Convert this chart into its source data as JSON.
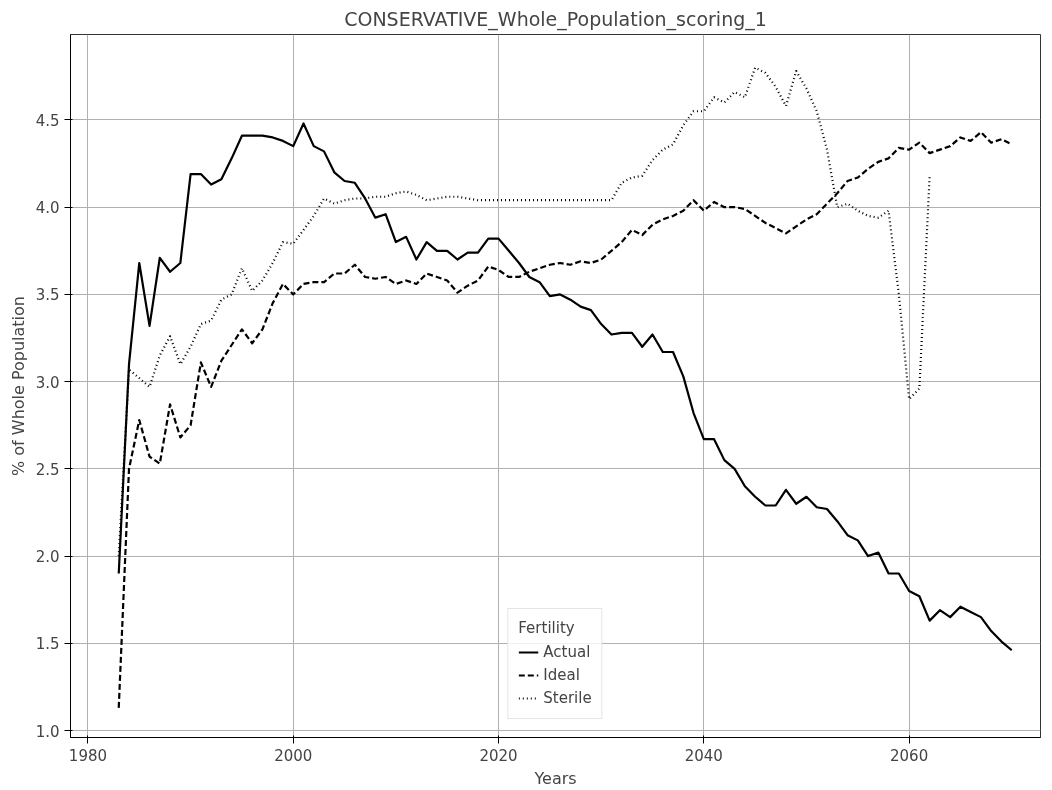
{
  "chart_data": {
    "type": "line",
    "title": "CONSERVATIVE_Whole_Population_scoring_1",
    "xlabel": "Years",
    "ylabel": "% of Whole Population",
    "legend_title": "Fertility",
    "legend": "bottom",
    "grid": true,
    "xlim": [
      1978.3,
      2072.8
    ],
    "ylim": [
      0.96,
      4.99
    ],
    "xticks": [
      1980,
      2000,
      2020,
      2040,
      2060
    ],
    "yticks": [
      {
        "value": 1.0,
        "label": "1.0"
      },
      {
        "value": 1.5,
        "label": "1.5"
      },
      {
        "value": 2.0,
        "label": "2.0"
      },
      {
        "value": 2.5,
        "label": "2.5"
      },
      {
        "value": 3.0,
        "label": "3.0"
      },
      {
        "value": 3.5,
        "label": "3.5"
      },
      {
        "value": 4.0,
        "label": "4.0"
      },
      {
        "value": 4.5,
        "label": "4.5"
      }
    ],
    "series": [
      {
        "name": "Actual",
        "color": "#000000",
        "line_style": "solid",
        "x": [
          1983,
          1984,
          1985,
          1986,
          1987,
          1988,
          1989,
          1990,
          1991,
          1992,
          1993,
          1994,
          1995,
          1996,
          1997,
          1998,
          1999,
          2000,
          2001,
          2002,
          2003,
          2004,
          2005,
          2006,
          2007,
          2008,
          2009,
          2010,
          2011,
          2012,
          2013,
          2014,
          2015,
          2016,
          2017,
          2018,
          2019,
          2020,
          2021,
          2022,
          2023,
          2024,
          2025,
          2026,
          2027,
          2028,
          2029,
          2030,
          2031,
          2032,
          2033,
          2034,
          2035,
          2036,
          2037,
          2038,
          2039,
          2040,
          2041,
          2042,
          2043,
          2044,
          2045,
          2046,
          2047,
          2048,
          2049,
          2050,
          2051,
          2052,
          2053,
          2054,
          2055,
          2056,
          2057,
          2058,
          2059,
          2060,
          2061,
          2062,
          2063,
          2064,
          2065,
          2066,
          2067,
          2068,
          2069,
          2070
        ],
        "values": [
          1.9,
          3.1,
          3.68,
          3.32,
          3.71,
          3.63,
          3.68,
          4.19,
          4.19,
          4.13,
          4.16,
          4.28,
          4.41,
          4.41,
          4.41,
          4.4,
          4.38,
          4.35,
          4.48,
          4.35,
          4.32,
          4.2,
          4.15,
          4.14,
          4.05,
          3.94,
          3.96,
          3.8,
          3.83,
          3.7,
          3.8,
          3.75,
          3.75,
          3.7,
          3.74,
          3.74,
          3.82,
          3.82,
          3.75,
          3.68,
          3.6,
          3.57,
          3.49,
          3.5,
          3.47,
          3.43,
          3.41,
          3.33,
          3.27,
          3.28,
          3.28,
          3.2,
          3.27,
          3.17,
          3.17,
          3.03,
          2.82,
          2.67,
          2.67,
          2.55,
          2.5,
          2.4,
          2.34,
          2.29,
          2.29,
          2.38,
          2.3,
          2.34,
          2.28,
          2.27,
          2.2,
          2.12,
          2.09,
          2.0,
          2.02,
          1.9,
          1.9,
          1.8,
          1.77,
          1.63,
          1.69,
          1.65,
          1.71,
          1.68,
          1.65,
          1.57,
          1.51,
          1.46
        ]
      },
      {
        "name": "Ideal",
        "color": "#000000",
        "line_style": "dashed",
        "x": [
          1983,
          1984,
          1985,
          1986,
          1987,
          1988,
          1989,
          1990,
          1991,
          1992,
          1993,
          1994,
          1995,
          1996,
          1997,
          1998,
          1999,
          2000,
          2001,
          2002,
          2003,
          2004,
          2005,
          2006,
          2007,
          2008,
          2009,
          2010,
          2011,
          2012,
          2013,
          2014,
          2015,
          2016,
          2017,
          2018,
          2019,
          2020,
          2021,
          2022,
          2023,
          2024,
          2025,
          2026,
          2027,
          2028,
          2029,
          2030,
          2031,
          2032,
          2033,
          2034,
          2035,
          2036,
          2037,
          2038,
          2039,
          2040,
          2041,
          2042,
          2043,
          2044,
          2045,
          2046,
          2047,
          2048,
          2049,
          2050,
          2051,
          2052,
          2053,
          2054,
          2055,
          2056,
          2057,
          2058,
          2059,
          2060,
          2061,
          2062,
          2063,
          2064,
          2065,
          2066,
          2067,
          2068,
          2069,
          2070
        ],
        "values": [
          1.13,
          2.5,
          2.78,
          2.57,
          2.53,
          2.87,
          2.68,
          2.75,
          3.11,
          2.97,
          3.12,
          3.21,
          3.3,
          3.22,
          3.3,
          3.45,
          3.56,
          3.5,
          3.56,
          3.57,
          3.57,
          3.62,
          3.62,
          3.67,
          3.6,
          3.59,
          3.6,
          3.56,
          3.58,
          3.56,
          3.62,
          3.6,
          3.58,
          3.51,
          3.55,
          3.58,
          3.66,
          3.64,
          3.6,
          3.6,
          3.63,
          3.65,
          3.67,
          3.68,
          3.67,
          3.69,
          3.68,
          3.7,
          3.75,
          3.8,
          3.87,
          3.84,
          3.9,
          3.93,
          3.95,
          3.98,
          4.04,
          3.98,
          4.03,
          4.0,
          4.0,
          3.99,
          3.95,
          3.91,
          3.88,
          3.85,
          3.89,
          3.93,
          3.96,
          4.02,
          4.08,
          4.15,
          4.17,
          4.22,
          4.26,
          4.28,
          4.34,
          4.33,
          4.37,
          4.31,
          4.33,
          4.35,
          4.4,
          4.38,
          4.43,
          4.37,
          4.39,
          4.36
        ]
      },
      {
        "name": "Sterile",
        "color": "#000000",
        "line_style": "dotted",
        "x": [
          1983,
          1984,
          1985,
          1986,
          1987,
          1988,
          1989,
          1990,
          1991,
          1992,
          1993,
          1994,
          1995,
          1996,
          1997,
          1998,
          1999,
          2000,
          2001,
          2002,
          2003,
          2004,
          2005,
          2006,
          2007,
          2008,
          2009,
          2010,
          2011,
          2012,
          2013,
          2014,
          2015,
          2016,
          2017,
          2018,
          2019,
          2020,
          2021,
          2022,
          2023,
          2024,
          2025,
          2026,
          2027,
          2028,
          2029,
          2030,
          2031,
          2032,
          2033,
          2034,
          2035,
          2036,
          2037,
          2038,
          2039,
          2040,
          2041,
          2042,
          2043,
          2044,
          2045,
          2046,
          2047,
          2048,
          2049,
          2050,
          2051,
          2052,
          2053,
          2054,
          2055,
          2056,
          2057,
          2058,
          2059,
          2060,
          2061,
          2062
        ],
        "values": [
          2.0,
          3.07,
          3.02,
          2.97,
          3.15,
          3.26,
          3.1,
          3.2,
          3.33,
          3.35,
          3.47,
          3.5,
          3.65,
          3.52,
          3.58,
          3.68,
          3.8,
          3.79,
          3.87,
          3.95,
          4.05,
          4.02,
          4.04,
          4.05,
          4.05,
          4.06,
          4.06,
          4.08,
          4.09,
          4.07,
          4.04,
          4.05,
          4.06,
          4.06,
          4.05,
          4.04,
          4.04,
          4.04,
          4.04,
          4.04,
          4.04,
          4.04,
          4.04,
          4.04,
          4.04,
          4.04,
          4.04,
          4.04,
          4.04,
          4.14,
          4.17,
          4.18,
          4.27,
          4.33,
          4.36,
          4.47,
          4.55,
          4.55,
          4.63,
          4.6,
          4.66,
          4.63,
          4.8,
          4.77,
          4.69,
          4.58,
          4.78,
          4.68,
          4.55,
          4.33,
          4.0,
          4.02,
          3.98,
          3.95,
          3.94,
          3.98,
          3.5,
          2.9,
          2.96,
          4.18
        ]
      }
    ]
  }
}
